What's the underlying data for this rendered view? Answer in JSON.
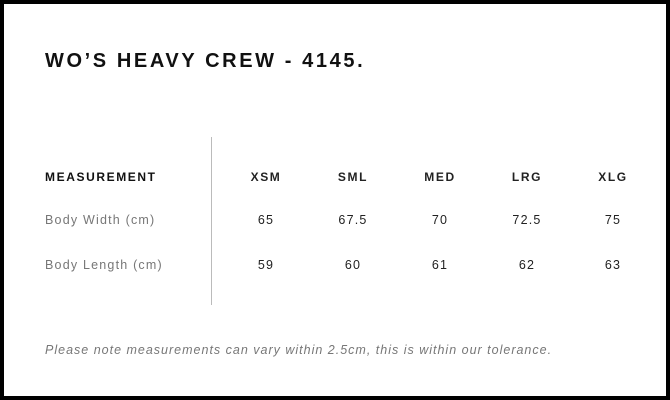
{
  "title": "WO’S HEAVY CREW - 4145.",
  "table": {
    "header": "MEASUREMENT",
    "sizes": [
      "XSM",
      "SML",
      "MED",
      "LRG",
      "XLG"
    ],
    "rows": [
      {
        "label": "Body Width (cm)",
        "values": [
          "65",
          "67.5",
          "70",
          "72.5",
          "75"
        ]
      },
      {
        "label": "Body Length (cm)",
        "values": [
          "59",
          "60",
          "61",
          "62",
          "63"
        ]
      }
    ]
  },
  "note": "Please note measurements can vary within 2.5cm, this is within our tolerance."
}
